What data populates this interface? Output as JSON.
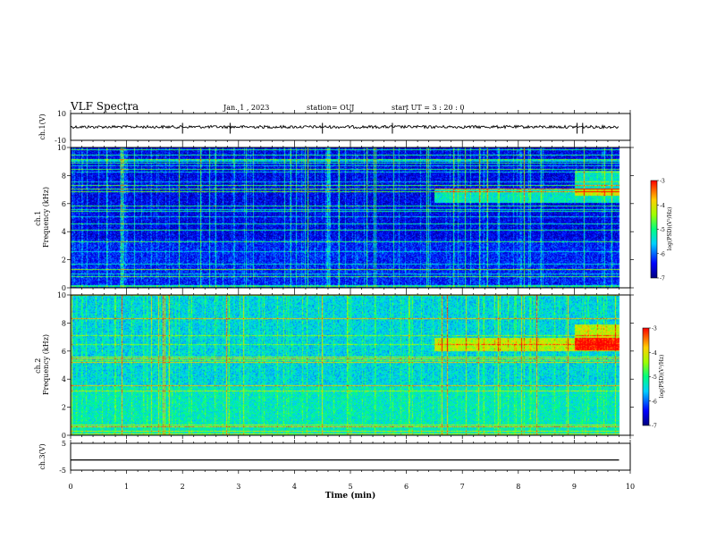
{
  "header": {
    "title": "VLF Spectra",
    "date": "Jan.  1  , 2023",
    "station": "station= OUJ",
    "start": "start  UT =   3  : 20 : 0"
  },
  "chart_data": [
    {
      "type": "line",
      "ylabel": "ch.1(V)",
      "ylim": [
        -10,
        10
      ],
      "yticks": [
        "10",
        "-10"
      ],
      "xlim": [
        0,
        10
      ],
      "series_level": 0,
      "spikes_x": [
        2.0,
        2.85,
        4.5,
        5.75,
        9.05,
        9.15
      ]
    },
    {
      "type": "heatmap",
      "ylabel": "ch.1\nFrequency (kHz)",
      "ylim": [
        0,
        10
      ],
      "yticks": [
        "0",
        "2",
        "4",
        "6",
        "8",
        "10"
      ],
      "xlim": [
        0,
        10
      ],
      "colorbar": {
        "label": "log(PSD)(V²/Hz)",
        "range": [
          -7,
          -3
        ],
        "ticks": [
          "-3",
          "-4",
          "-5",
          "-6",
          "-7"
        ]
      },
      "features": {
        "band_6_6_khz_start_min": 6.5,
        "band_7_5_khz_start_min": 9.0
      }
    },
    {
      "type": "heatmap",
      "ylabel": "ch.2\nFrequency (kHz)",
      "ylim": [
        0,
        10
      ],
      "yticks": [
        "0",
        "2",
        "4",
        "6",
        "8",
        "10"
      ],
      "xlim": [
        0,
        10
      ],
      "colorbar": {
        "label": "log(PSD)(V²/Hz)",
        "range": [
          -7,
          -3
        ],
        "ticks": [
          "-3",
          "-4",
          "-5",
          "-6",
          "-7"
        ]
      },
      "features": {
        "band_6_5_khz_start_min": 6.5,
        "band_7_khz_start_min": 9.0
      }
    },
    {
      "type": "line",
      "ylabel": "ch.3(V)",
      "ylim": [
        -5,
        5
      ],
      "yticks": [
        "5",
        "-5"
      ],
      "xlim": [
        0,
        10
      ],
      "series_level": -1.2
    }
  ],
  "xaxis": {
    "label": "Time  (min)",
    "ticks": [
      "0",
      "1",
      "2",
      "3",
      "4",
      "5",
      "6",
      "7",
      "8",
      "9",
      "10"
    ]
  }
}
